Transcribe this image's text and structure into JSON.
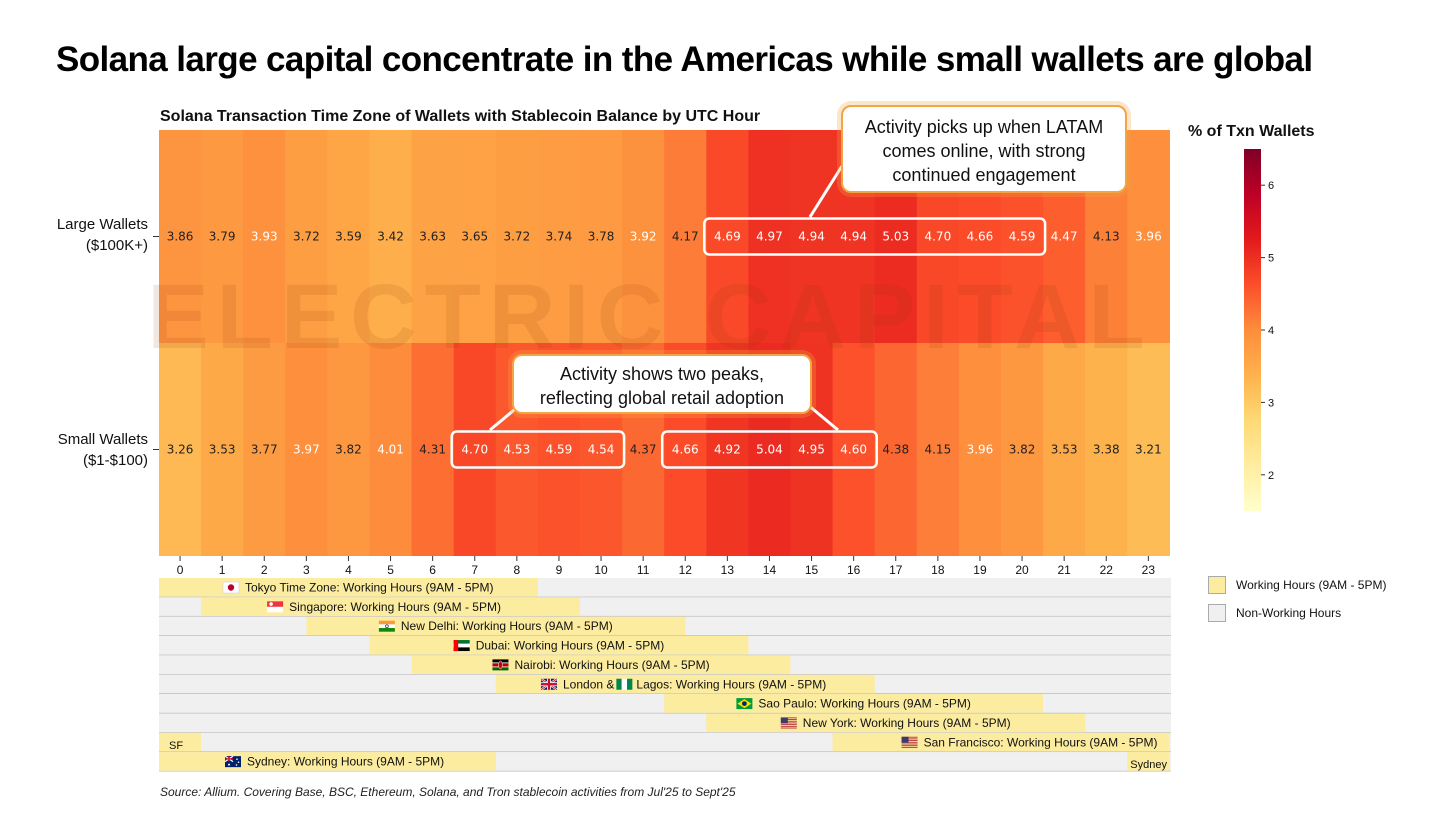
{
  "title": "Solana large capital concentrate in the Americas while small wallets are global",
  "source": "Source: Allium. Covering Base, BSC, Ethereum, Solana, and Tron stablecoin activities from Jul'25 to Sept'25",
  "watermark": "ELECTRIC CAPITAL",
  "annotations": {
    "large": [
      "Activity picks up when LATAM",
      "comes online, with strong",
      "continued engagement"
    ],
    "small": [
      "Activity shows two peaks,",
      "reflecting global retail adoption"
    ]
  },
  "chart_data": {
    "type": "heatmap",
    "title": "Solana Transaction Time Zone of Wallets with Stablecoin Balance by UTC Hour",
    "x": [
      0,
      1,
      2,
      3,
      4,
      5,
      6,
      7,
      8,
      9,
      10,
      11,
      12,
      13,
      14,
      15,
      16,
      17,
      18,
      19,
      20,
      21,
      22,
      23
    ],
    "rows": [
      {
        "label_lines": [
          "Large Wallets",
          "($100K+)"
        ],
        "values": [
          3.86,
          3.79,
          3.93,
          3.72,
          3.59,
          3.42,
          3.63,
          3.65,
          3.72,
          3.74,
          3.78,
          3.92,
          4.17,
          4.69,
          4.97,
          4.94,
          4.94,
          5.03,
          4.7,
          4.66,
          4.59,
          4.47,
          4.13,
          3.96
        ]
      },
      {
        "label_lines": [
          "Small Wallets",
          "($1-$100)"
        ],
        "values": [
          3.26,
          3.53,
          3.77,
          3.97,
          3.82,
          4.01,
          4.31,
          4.7,
          4.53,
          4.59,
          4.54,
          4.37,
          4.66,
          4.92,
          5.04,
          4.95,
          4.6,
          4.38,
          4.15,
          3.96,
          3.82,
          3.53,
          3.38,
          3.21
        ]
      }
    ],
    "colorbar": {
      "title": "% of Txn Wallets",
      "range": [
        1.5,
        6.5
      ],
      "ticks": [
        2,
        3,
        4,
        5,
        6
      ]
    },
    "highlight_boxes": [
      {
        "row": 0,
        "from_hour": 13,
        "to_hour": 20
      },
      {
        "row": 1,
        "from_hour": 7,
        "to_hour": 10
      },
      {
        "row": 1,
        "from_hour": 12,
        "to_hour": 16
      }
    ]
  },
  "timezones": {
    "legend": {
      "working": "Working Hours (9AM - 5PM)",
      "non_working": "Non-Working Hours"
    },
    "colors": {
      "working": "#fcec9f",
      "non_working": "#f0f0f0"
    },
    "rows": [
      {
        "name": "Tokyo",
        "flag": "japan",
        "segments": [
          {
            "start": 0,
            "end": 9
          }
        ],
        "label": "Tokyo Time Zone: Working Hours (9AM - 5PM)"
      },
      {
        "name": "Singapore",
        "flag": "singapore",
        "segments": [
          {
            "start": 1,
            "end": 10
          }
        ],
        "label": "Singapore: Working Hours (9AM - 5PM)"
      },
      {
        "name": "New Delhi",
        "flag": "india",
        "segments": [
          {
            "start": 3.5,
            "end": 12.5
          }
        ],
        "label": "New Delhi: Working Hours (9AM - 5PM)"
      },
      {
        "name": "Dubai",
        "flag": "uae",
        "segments": [
          {
            "start": 5,
            "end": 14
          }
        ],
        "label": "Dubai: Working Hours (9AM - 5PM)"
      },
      {
        "name": "Nairobi",
        "flag": "kenya",
        "segments": [
          {
            "start": 6,
            "end": 15
          }
        ],
        "label": "Nairobi: Working Hours (9AM - 5PM)"
      },
      {
        "name": "London & Lagos",
        "flag": "uk",
        "flag2": "nigeria",
        "segments": [
          {
            "start": 8,
            "end": 17
          }
        ],
        "label_pre": "London & ",
        "label": "Lagos: Working Hours (9AM - 5PM)"
      },
      {
        "name": "Sao Paulo",
        "flag": "brazil",
        "segments": [
          {
            "start": 12,
            "end": 21
          }
        ],
        "label": "Sao Paulo: Working Hours (9AM - 5PM)"
      },
      {
        "name": "New York",
        "flag": "usa",
        "segments": [
          {
            "start": 13,
            "end": 22
          }
        ],
        "label": "New York: Working Hours (9AM - 5PM)"
      },
      {
        "name": "San Francisco",
        "flag": "usa",
        "segments": [
          {
            "start": 0,
            "end": 1,
            "label": "SF"
          },
          {
            "start": 16,
            "end": 24
          }
        ],
        "label": "San Francisco: Working Hours (9AM - 5PM)"
      },
      {
        "name": "Sydney",
        "flag": "australia",
        "segments": [
          {
            "start": 0,
            "end": 8
          },
          {
            "start": 23,
            "end": 24,
            "label": "Sydney"
          }
        ],
        "label": "Sydney: Working Hours (9AM - 5PM)"
      }
    ]
  }
}
